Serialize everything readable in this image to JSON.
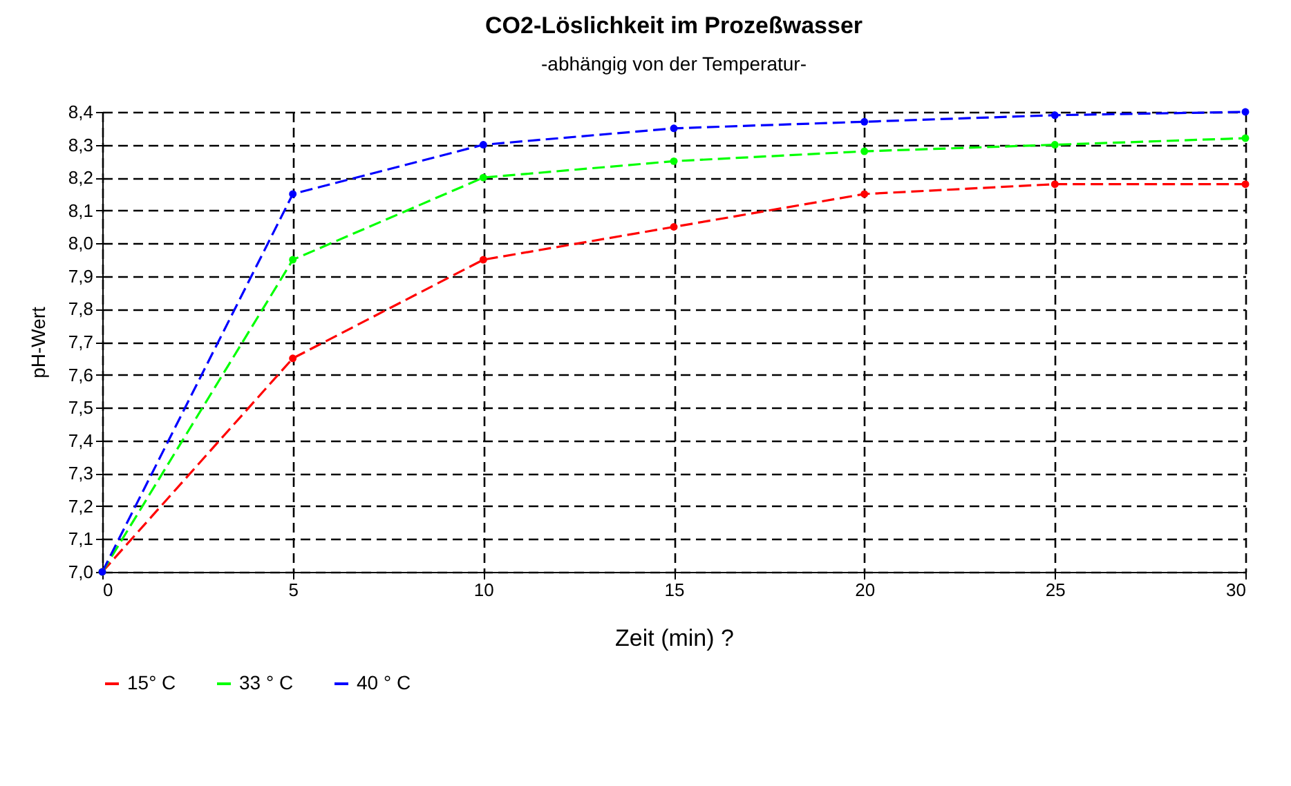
{
  "chart_data": {
    "type": "line",
    "title": "CO2-Löslichkeit im Prozeßwasser",
    "subtitle": "-abhängig von der Temperatur-",
    "xlabel": "Zeit (min) ?",
    "ylabel": "pH-Wert",
    "x": [
      0,
      5,
      10,
      15,
      20,
      25,
      30
    ],
    "series": [
      {
        "name": "15° C",
        "color": "#ff0000",
        "values": [
          7.0,
          7.65,
          7.95,
          8.05,
          8.15,
          8.18,
          8.18
        ]
      },
      {
        "name": "33 ° C",
        "color": "#00ff00",
        "values": [
          7.0,
          7.95,
          8.2,
          8.25,
          8.28,
          8.3,
          8.32
        ]
      },
      {
        "name": "40 ° C",
        "color": "#0000ff",
        "values": [
          7.0,
          8.15,
          8.3,
          8.35,
          8.37,
          8.39,
          8.4
        ]
      }
    ],
    "xlim": [
      0,
      30
    ],
    "xticks": [
      0,
      5,
      10,
      15,
      20,
      25,
      30
    ],
    "ylim": [
      7.0,
      8.4
    ],
    "yticks": [
      {
        "value": 7.0,
        "label": "7,0"
      },
      {
        "value": 7.1,
        "label": "7,1"
      },
      {
        "value": 7.2,
        "label": "7,2"
      },
      {
        "value": 7.3,
        "label": "7,3"
      },
      {
        "value": 7.4,
        "label": "7,4"
      },
      {
        "value": 7.5,
        "label": "7,5"
      },
      {
        "value": 7.6,
        "label": "7,6"
      },
      {
        "value": 7.7,
        "label": "7,7"
      },
      {
        "value": 7.8,
        "label": "7,8"
      },
      {
        "value": 7.9,
        "label": "7,9"
      },
      {
        "value": 8.0,
        "label": "8,0"
      },
      {
        "value": 8.1,
        "label": "8,1"
      },
      {
        "value": 8.2,
        "label": "8,2"
      },
      {
        "value": 8.3,
        "label": "8,3"
      },
      {
        "value": 8.4,
        "label": "8,4"
      }
    ],
    "grid": true,
    "legend": "bottom",
    "marker": "circle",
    "line_style": "dashed"
  }
}
